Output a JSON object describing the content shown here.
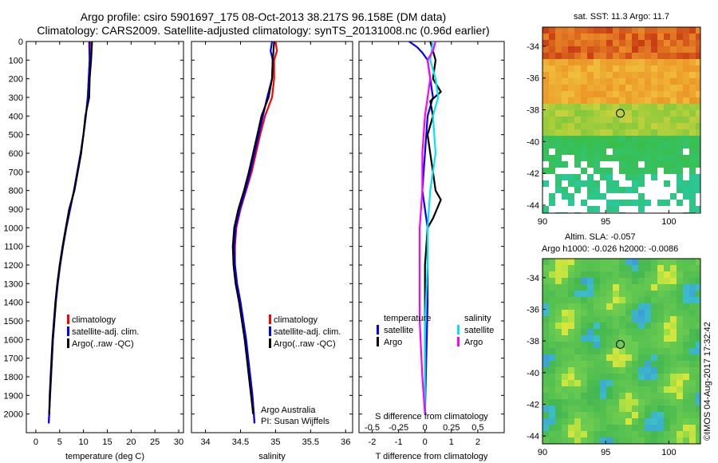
{
  "title": {
    "line1": "Argo profile: csiro 5901697_175 08-Oct-2013 38.217S 96.158E (DM data)",
    "line2": "Climatology: CARS2009. Satellite-adjusted climatology: synTS_20131008.nc (0.96d earlier)"
  },
  "stamp": "©IMOS 04-Aug-2017 17:32:42",
  "colors": {
    "clim": "#ff0000",
    "sat": "#0000ff",
    "argo": "#000000",
    "sal_sat": "#00e5ee",
    "sal_argo": "#ff00ff"
  },
  "chart_data": [
    {
      "type": "line",
      "xlabel": "temperature (deg C)",
      "ylabel": "",
      "xlim": [
        -2,
        31
      ],
      "ylim": [
        2100,
        0
      ],
      "xticks": [
        0,
        5,
        10,
        15,
        20,
        25,
        30
      ],
      "yticks": [
        0,
        100,
        200,
        300,
        400,
        500,
        600,
        700,
        800,
        900,
        1000,
        1100,
        1200,
        1300,
        1400,
        1500,
        1600,
        1700,
        1800,
        1900,
        2000
      ],
      "legend": [
        "climatology",
        "satellite-adj. clim.",
        "Argo(..raw -QC)"
      ],
      "legend_position": "lower-center",
      "series": [
        {
          "name": "climatology",
          "color": "#ff0000",
          "points": [
            [
              11.4,
              0
            ],
            [
              11.3,
              100
            ],
            [
              11.1,
              200
            ],
            [
              10.9,
              300
            ],
            [
              10.5,
              400
            ],
            [
              10.0,
              500
            ],
            [
              9.4,
              600
            ],
            [
              8.7,
              700
            ],
            [
              8.0,
              800
            ],
            [
              7.2,
              900
            ],
            [
              6.4,
              1000
            ],
            [
              5.7,
              1100
            ],
            [
              5.1,
              1200
            ],
            [
              4.6,
              1300
            ],
            [
              4.2,
              1400
            ],
            [
              3.9,
              1500
            ],
            [
              3.6,
              1600
            ],
            [
              3.4,
              1700
            ],
            [
              3.2,
              1800
            ],
            [
              3.0,
              1900
            ],
            [
              2.8,
              2000
            ],
            [
              2.7,
              2050
            ]
          ]
        },
        {
          "name": "satellite-adj. clim.",
          "color": "#0000ff",
          "points": [
            [
              11.2,
              0
            ],
            [
              11.3,
              100
            ],
            [
              11.1,
              200
            ],
            [
              10.9,
              300
            ],
            [
              10.5,
              400
            ],
            [
              10.0,
              500
            ],
            [
              9.4,
              600
            ],
            [
              8.7,
              700
            ],
            [
              8.0,
              800
            ],
            [
              7.2,
              900
            ],
            [
              6.4,
              1000
            ],
            [
              5.7,
              1100
            ],
            [
              5.1,
              1200
            ],
            [
              4.6,
              1300
            ],
            [
              4.2,
              1400
            ],
            [
              3.9,
              1500
            ],
            [
              3.6,
              1600
            ],
            [
              3.4,
              1700
            ],
            [
              3.2,
              1800
            ],
            [
              3.0,
              1900
            ],
            [
              2.8,
              2000
            ],
            [
              2.7,
              2050
            ]
          ]
        },
        {
          "name": "Argo(..raw -QC)",
          "color": "#000000",
          "points": [
            [
              11.8,
              0
            ],
            [
              11.6,
              100
            ],
            [
              11.3,
              200
            ],
            [
              11.2,
              300
            ],
            [
              10.4,
              400
            ],
            [
              10.0,
              500
            ],
            [
              9.5,
              600
            ],
            [
              8.8,
              700
            ],
            [
              8.1,
              800
            ],
            [
              7.0,
              900
            ],
            [
              6.3,
              1000
            ],
            [
              5.6,
              1100
            ],
            [
              5.0,
              1200
            ],
            [
              4.5,
              1300
            ],
            [
              4.1,
              1400
            ],
            [
              3.8,
              1500
            ],
            [
              3.5,
              1600
            ],
            [
              3.3,
              1700
            ],
            [
              3.1,
              1800
            ],
            [
              2.9,
              1900
            ],
            [
              2.8,
              2000
            ]
          ]
        }
      ]
    },
    {
      "type": "line",
      "xlabel": "salinity",
      "ylabel": "",
      "xlim": [
        33.8,
        36.1
      ],
      "ylim": [
        2100,
        0
      ],
      "xticks": [
        34,
        34.5,
        35,
        35.5,
        36
      ],
      "annotations": [
        "Argo Australia",
        "PI: Susan Wijffels"
      ],
      "legend": [
        "climatology",
        "satellite-adj. clim.",
        "Argo(..raw -QC)"
      ],
      "legend_position": "lower-right",
      "series": [
        {
          "name": "climatology",
          "color": "#ff0000",
          "points": [
            [
              35.0,
              0
            ],
            [
              35.02,
              50
            ],
            [
              34.98,
              100
            ],
            [
              34.98,
              200
            ],
            [
              34.95,
              300
            ],
            [
              34.85,
              400
            ],
            [
              34.78,
              500
            ],
            [
              34.72,
              600
            ],
            [
              34.66,
              700
            ],
            [
              34.58,
              800
            ],
            [
              34.5,
              900
            ],
            [
              34.44,
              1000
            ],
            [
              34.42,
              1100
            ],
            [
              34.42,
              1200
            ],
            [
              34.45,
              1300
            ],
            [
              34.5,
              1400
            ],
            [
              34.54,
              1500
            ],
            [
              34.58,
              1600
            ],
            [
              34.61,
              1700
            ],
            [
              34.64,
              1800
            ],
            [
              34.67,
              1900
            ],
            [
              34.69,
              2000
            ],
            [
              34.7,
              2050
            ]
          ]
        },
        {
          "name": "satellite-adj. clim.",
          "color": "#0000ff",
          "points": [
            [
              34.95,
              0
            ],
            [
              34.93,
              50
            ],
            [
              34.96,
              100
            ],
            [
              34.95,
              200
            ],
            [
              34.88,
              300
            ],
            [
              34.82,
              400
            ],
            [
              34.76,
              500
            ],
            [
              34.7,
              600
            ],
            [
              34.64,
              700
            ],
            [
              34.57,
              800
            ],
            [
              34.49,
              900
            ],
            [
              34.43,
              1000
            ],
            [
              34.41,
              1100
            ],
            [
              34.42,
              1200
            ],
            [
              34.45,
              1300
            ],
            [
              34.5,
              1400
            ],
            [
              34.54,
              1500
            ],
            [
              34.58,
              1600
            ],
            [
              34.61,
              1700
            ],
            [
              34.64,
              1800
            ],
            [
              34.67,
              1900
            ],
            [
              34.69,
              2000
            ],
            [
              34.7,
              2050
            ]
          ]
        },
        {
          "name": "Argo(..raw -QC)",
          "color": "#000000",
          "points": [
            [
              34.98,
              0
            ],
            [
              34.97,
              50
            ],
            [
              34.96,
              100
            ],
            [
              34.95,
              200
            ],
            [
              34.9,
              300
            ],
            [
              34.8,
              400
            ],
            [
              34.74,
              500
            ],
            [
              34.68,
              600
            ],
            [
              34.62,
              700
            ],
            [
              34.55,
              800
            ],
            [
              34.47,
              900
            ],
            [
              34.41,
              1000
            ],
            [
              34.39,
              1100
            ],
            [
              34.4,
              1200
            ],
            [
              34.43,
              1300
            ],
            [
              34.48,
              1400
            ],
            [
              34.52,
              1500
            ],
            [
              34.56,
              1600
            ],
            [
              34.59,
              1700
            ],
            [
              34.62,
              1800
            ],
            [
              34.65,
              1900
            ],
            [
              34.68,
              2000
            ]
          ]
        }
      ]
    },
    {
      "type": "line",
      "xlabel": "T difference from climatology",
      "ylabel": "",
      "top_xlabel": "S difference from climatology",
      "xlim": [
        -2.5,
        3.0
      ],
      "ylim": [
        2100,
        0
      ],
      "xticks": [
        -2,
        -1,
        0,
        1,
        2
      ],
      "top_xticks": [
        "-0.5",
        "-0.25",
        "0",
        "0.25",
        "0.5"
      ],
      "top_xtick_positions": [
        -2,
        -1,
        0,
        1,
        2
      ],
      "legend_left_title": "temperature",
      "legend_right_title": "salinity",
      "legend": [
        "satellite",
        "Argo",
        "satellite",
        "Argo"
      ],
      "legend_position": "lower-center",
      "series": [
        {
          "name": "satellite",
          "group": "temperature",
          "color": "#0000ff",
          "points": [
            [
              -0.6,
              0
            ],
            [
              -0.3,
              30
            ],
            [
              -0.1,
              60
            ],
            [
              0.1,
              100
            ],
            [
              0.2,
              200
            ],
            [
              0.3,
              300
            ],
            [
              0.1,
              400
            ],
            [
              0.0,
              600
            ],
            [
              -0.1,
              800
            ],
            [
              0.1,
              1000
            ],
            [
              0.1,
              1400
            ],
            [
              0.0,
              2000
            ]
          ]
        },
        {
          "name": "Argo",
          "group": "temperature",
          "color": "#000000",
          "points": [
            [
              0.2,
              0
            ],
            [
              0.3,
              50
            ],
            [
              0.4,
              100
            ],
            [
              0.3,
              200
            ],
            [
              0.6,
              270
            ],
            [
              0.2,
              320
            ],
            [
              0.3,
              400
            ],
            [
              0.1,
              500
            ],
            [
              0.2,
              600
            ],
            [
              0.3,
              700
            ],
            [
              0.4,
              800
            ],
            [
              0.6,
              850
            ],
            [
              0.3,
              950
            ],
            [
              0.1,
              1000
            ],
            [
              0.0,
              1200
            ],
            [
              0.0,
              1500
            ],
            [
              0.0,
              2000
            ]
          ]
        },
        {
          "name": "satellite",
          "group": "salinity",
          "color": "#00e5ee",
          "points": [
            [
              0.3,
              0
            ],
            [
              0.2,
              100
            ],
            [
              0.4,
              200
            ],
            [
              0.5,
              300
            ],
            [
              0.3,
              400
            ],
            [
              0.4,
              600
            ],
            [
              0.2,
              800
            ],
            [
              0.1,
              1000
            ],
            [
              0.1,
              1200
            ],
            [
              0.0,
              1500
            ],
            [
              0.0,
              2000
            ]
          ]
        },
        {
          "name": "Argo",
          "group": "salinity",
          "color": "#ff00ff",
          "points": [
            [
              0.4,
              0
            ],
            [
              0.3,
              50
            ],
            [
              0.1,
              100
            ],
            [
              0.2,
              200
            ],
            [
              0.0,
              400
            ],
            [
              -0.1,
              600
            ],
            [
              -0.1,
              800
            ],
            [
              -0.2,
              1000
            ],
            [
              -0.2,
              1200
            ],
            [
              -0.2,
              1500
            ],
            [
              -0.1,
              1800
            ],
            [
              0.0,
              2000
            ]
          ]
        }
      ]
    },
    {
      "type": "heatmap",
      "title": "sat. SST: 11.3 Argo: 11.7",
      "xlim": [
        90,
        102.5
      ],
      "ylim": [
        -44.5,
        -32.8
      ],
      "xticks": [
        "90",
        "95",
        "100"
      ],
      "yticks": [
        "-34",
        "-36",
        "-38",
        "-40",
        "-42",
        "-44"
      ],
      "marker": {
        "lon": 96.158,
        "lat": -38.217
      }
    },
    {
      "type": "heatmap",
      "title_line1": "Altim. SLA: -0.057",
      "title_line2": "Argo h1000: -0.026 h2000: -0.0086",
      "xlim": [
        90,
        102.5
      ],
      "ylim": [
        -44.5,
        -32.8
      ],
      "xticks": [
        "90",
        "95",
        "100"
      ],
      "yticks": [
        "-34",
        "-36",
        "-38",
        "-40",
        "-42",
        "-44"
      ],
      "marker": {
        "lon": 96.158,
        "lat": -38.217
      }
    }
  ]
}
